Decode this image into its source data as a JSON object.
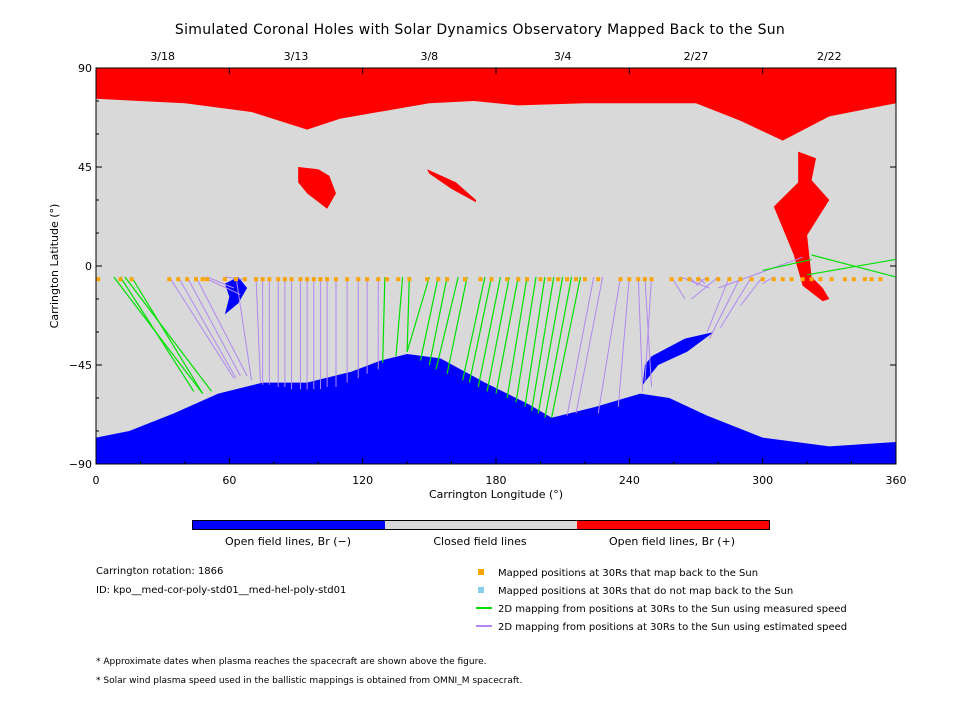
{
  "chart_data": {
    "type": "map",
    "title": "Simulated Coronal Holes with Solar Dynamics Observatory Mapped Back to the Sun",
    "xlabel": "Carrington Longitude (°)",
    "ylabel": "Carrington Latitude (°)",
    "xlim": [
      0,
      360
    ],
    "ylim": [
      -90,
      90
    ],
    "x_ticks": [
      "0",
      "60",
      "120",
      "180",
      "240",
      "300",
      "360"
    ],
    "y_ticks": [
      "90",
      "45",
      "0",
      "-45",
      "-90"
    ],
    "top_dates": [
      {
        "label": "3/18",
        "lon": 30
      },
      {
        "label": "3/13",
        "lon": 90
      },
      {
        "label": "3/8",
        "lon": 150
      },
      {
        "label": "3/4",
        "lon": 210
      },
      {
        "label": "2/27",
        "lon": 270
      },
      {
        "label": "2/22",
        "lon": 330
      }
    ],
    "colors": {
      "open_negative": "#0000ff",
      "closed": "#d9d9d9",
      "open_positive": "#ff0000",
      "mapped_back": "#ffa500",
      "not_mapped_back": "#87ceeb",
      "measured_speed": "#00e000",
      "estimated_speed": "#b088f0"
    },
    "north_boundary": [
      [
        0,
        76
      ],
      [
        40,
        74
      ],
      [
        70,
        70
      ],
      [
        95,
        62
      ],
      [
        110,
        67
      ],
      [
        150,
        74
      ],
      [
        170,
        75
      ],
      [
        190,
        73
      ],
      [
        220,
        74
      ],
      [
        270,
        74
      ],
      [
        290,
        66
      ],
      [
        309,
        57
      ],
      [
        330,
        68
      ],
      [
        360,
        74
      ]
    ],
    "south_boundary": [
      [
        0,
        -78
      ],
      [
        15,
        -75
      ],
      [
        35,
        -67
      ],
      [
        55,
        -58
      ],
      [
        75,
        -53
      ],
      [
        95,
        -53
      ],
      [
        115,
        -48
      ],
      [
        128,
        -43
      ],
      [
        140,
        -40
      ],
      [
        155,
        -42
      ],
      [
        175,
        -53
      ],
      [
        195,
        -63
      ],
      [
        205,
        -69
      ],
      [
        225,
        -64
      ],
      [
        245,
        -58
      ],
      [
        258,
        -60
      ],
      [
        275,
        -68
      ],
      [
        300,
        -78
      ],
      [
        330,
        -82
      ],
      [
        360,
        -80
      ]
    ],
    "pos_patches": [
      [
        [
          91,
          45
        ],
        [
          100,
          44
        ],
        [
          105,
          41
        ],
        [
          108,
          33
        ],
        [
          104,
          26
        ],
        [
          95,
          33
        ],
        [
          91,
          38
        ]
      ],
      [
        [
          149,
          44
        ],
        [
          162,
          38
        ],
        [
          171,
          30
        ],
        [
          171,
          29
        ],
        [
          160,
          35
        ],
        [
          150,
          42
        ]
      ],
      [
        [
          316,
          52
        ],
        [
          324,
          49
        ],
        [
          322,
          39
        ],
        [
          330,
          30
        ],
        [
          320,
          14
        ],
        [
          322,
          -5
        ],
        [
          327,
          -10
        ],
        [
          330,
          -15
        ],
        [
          327,
          -16
        ],
        [
          318,
          -9
        ],
        [
          314,
          5
        ],
        [
          305,
          27
        ],
        [
          316,
          38
        ]
      ]
    ],
    "neg_patches": [
      [
        [
          58,
          -8
        ],
        [
          64,
          -5
        ],
        [
          68,
          -10
        ],
        [
          64,
          -17
        ],
        [
          58,
          -22
        ],
        [
          60,
          -14
        ]
      ],
      [
        [
          250,
          -41
        ],
        [
          265,
          -33
        ],
        [
          278,
          -30
        ],
        [
          266,
          -39
        ],
        [
          253,
          -45
        ],
        [
          246,
          -54
        ],
        [
          247,
          -45
        ]
      ]
    ],
    "mapped_points_lon": [
      1,
      11,
      16,
      33,
      37,
      41,
      45,
      48,
      50,
      58,
      63,
      67,
      72,
      75,
      78,
      82,
      85,
      88,
      92,
      95,
      98,
      101,
      104,
      108,
      113,
      118,
      122,
      127,
      131,
      136,
      141,
      149,
      154,
      158,
      166,
      173,
      178,
      185,
      190,
      194,
      200,
      204,
      208,
      212,
      216,
      220,
      226,
      236,
      240,
      244,
      247,
      250,
      259,
      263,
      267,
      271,
      275,
      280,
      285,
      290,
      295,
      300,
      305,
      309,
      313,
      318,
      322,
      326,
      331,
      337,
      341,
      346,
      349,
      353
    ],
    "not_mapped_points_lon": [],
    "measured_speed_lines": [
      [
        8,
        -5,
        48,
        -58
      ],
      [
        11,
        -5,
        44,
        -57
      ],
      [
        16,
        -5,
        48,
        -58
      ],
      [
        13,
        -5,
        52,
        -57
      ],
      [
        130,
        -5,
        129,
        -44
      ],
      [
        138,
        -5,
        135,
        -41
      ],
      [
        141,
        -5,
        140,
        -39
      ],
      [
        150,
        -5,
        140,
        -39
      ],
      [
        154,
        -5,
        146,
        -43
      ],
      [
        158,
        -5,
        150,
        -45
      ],
      [
        163,
        -5,
        153,
        -47
      ],
      [
        167,
        -5,
        158,
        -49
      ],
      [
        175,
        -5,
        165,
        -52
      ],
      [
        178,
        -5,
        168,
        -53
      ],
      [
        182,
        -5,
        172,
        -55
      ],
      [
        186,
        -5,
        176,
        -57
      ],
      [
        190,
        -5,
        180,
        -58
      ],
      [
        194,
        -5,
        185,
        -60
      ],
      [
        198,
        -5,
        189,
        -62
      ],
      [
        202,
        -5,
        193,
        -64
      ],
      [
        206,
        -5,
        196,
        -66
      ],
      [
        210,
        -5,
        199,
        -67
      ],
      [
        214,
        -5,
        202,
        -69
      ],
      [
        218,
        -5,
        205,
        -69
      ],
      [
        320,
        -4,
        360,
        3
      ],
      [
        322,
        5,
        360,
        -5
      ],
      [
        322,
        3,
        300,
        -2
      ]
    ],
    "estimated_speed_lines": [
      [
        33,
        -5,
        62,
        -51
      ],
      [
        37,
        -5,
        63,
        -51
      ],
      [
        41,
        -5,
        65,
        -50
      ],
      [
        45,
        -5,
        68,
        -50
      ],
      [
        48,
        -5,
        65,
        -13
      ],
      [
        50,
        -5,
        62,
        -10
      ],
      [
        58,
        -5,
        66,
        -6
      ],
      [
        63,
        -5,
        70,
        -52
      ],
      [
        72,
        -5,
        74,
        -53
      ],
      [
        75,
        -5,
        75,
        -54
      ],
      [
        78,
        -5,
        78,
        -54
      ],
      [
        82,
        -5,
        82,
        -55
      ],
      [
        85,
        -5,
        85,
        -55
      ],
      [
        88,
        -5,
        88,
        -56
      ],
      [
        92,
        -5,
        92,
        -56
      ],
      [
        95,
        -5,
        95,
        -56
      ],
      [
        98,
        -5,
        98,
        -56
      ],
      [
        101,
        -5,
        101,
        -56
      ],
      [
        104,
        -5,
        104,
        -55
      ],
      [
        108,
        -5,
        108,
        -55
      ],
      [
        113,
        -5,
        113,
        -53
      ],
      [
        118,
        -5,
        118,
        -51
      ],
      [
        122,
        -5,
        122,
        -49
      ],
      [
        127,
        -5,
        127,
        -47
      ],
      [
        224,
        -5,
        212,
        -68
      ],
      [
        228,
        -5,
        216,
        -67
      ],
      [
        236,
        -5,
        226,
        -67
      ],
      [
        240,
        -5,
        235,
        -64
      ],
      [
        244,
        -5,
        246,
        -57
      ],
      [
        247,
        -5,
        250,
        -55
      ],
      [
        250,
        -5,
        247,
        -53
      ],
      [
        259,
        -5,
        265,
        -15
      ],
      [
        263,
        -5,
        276,
        -10
      ],
      [
        267,
        -5,
        271,
        -9
      ],
      [
        271,
        -5,
        274,
        -8
      ],
      [
        275,
        -5,
        271,
        -8
      ],
      [
        280,
        -5,
        268,
        -15
      ],
      [
        285,
        -5,
        275,
        -30
      ],
      [
        290,
        -5,
        276,
        -33
      ],
      [
        295,
        -5,
        281,
        -28
      ],
      [
        300,
        -5,
        290,
        -18
      ],
      [
        305,
        -5,
        300,
        -8
      ],
      [
        318,
        4,
        280,
        -10
      ]
    ]
  },
  "colorbar": {
    "labels": [
      "Open field lines, Br (−)",
      "Closed field lines",
      "Open field lines, Br (+)"
    ]
  },
  "info": {
    "rotation": "Carrington rotation: 1866",
    "id": "ID: kpo__med-cor-poly-std01__med-hel-poly-std01"
  },
  "legend": {
    "mapped": "Mapped positions at 30Rs that map back to the Sun",
    "not_mapped": "Mapped positions at 30Rs that do not map back to the Sun",
    "measured": "2D mapping from positions at 30Rs to the Sun using measured speed",
    "estimated": "2D mapping from positions at 30Rs to the Sun using estimated speed"
  },
  "notes": {
    "note1": "* Approximate dates when plasma reaches the spacecraft are shown above the figure.",
    "note2": "* Solar wind plasma speed used in the ballistic mappings is obtained from OMNI_M spacecraft."
  }
}
